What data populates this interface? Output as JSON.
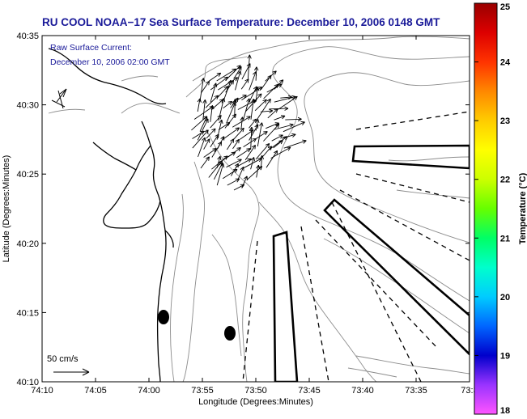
{
  "title": "RU COOL  NOAA−17  Sea Surface Temperature:  December 10, 2006 0148 GMT",
  "current_legend": {
    "line1": "Raw Surface Current:",
    "line2": "December 10, 2006 02:00 GMT"
  },
  "scale_label": "50 cm/s",
  "x_axis": {
    "label": "Longitude (Degrees:Minutes)",
    "ticks": [
      "74:10",
      "74:05",
      "74:00",
      "73:55",
      "73:50",
      "73:45",
      "73:40",
      "73:35",
      "73:3"
    ]
  },
  "y_axis": {
    "label": "Latitude (Degrees:Minutes)",
    "ticks": [
      "40:35",
      "40:30",
      "40:25",
      "40:20",
      "40:15",
      "40:10"
    ]
  },
  "colorbar": {
    "label": "Temperature (°C)",
    "min": 18,
    "max": 25,
    "ticks": [
      "25",
      "24",
      "23",
      "22",
      "21",
      "20",
      "19",
      "18"
    ],
    "colors": [
      "#ff55ff",
      "#9933ff",
      "#0000cc",
      "#0066ff",
      "#00ccff",
      "#00ffcc",
      "#00ff66",
      "#66ff00",
      "#ccff00",
      "#ffff00",
      "#ffcc00",
      "#ff8800",
      "#ff3300",
      "#dd0000",
      "#990000"
    ]
  },
  "colors": {
    "title": "#1a1a99",
    "contour": "#888888",
    "coast": "#000000"
  }
}
